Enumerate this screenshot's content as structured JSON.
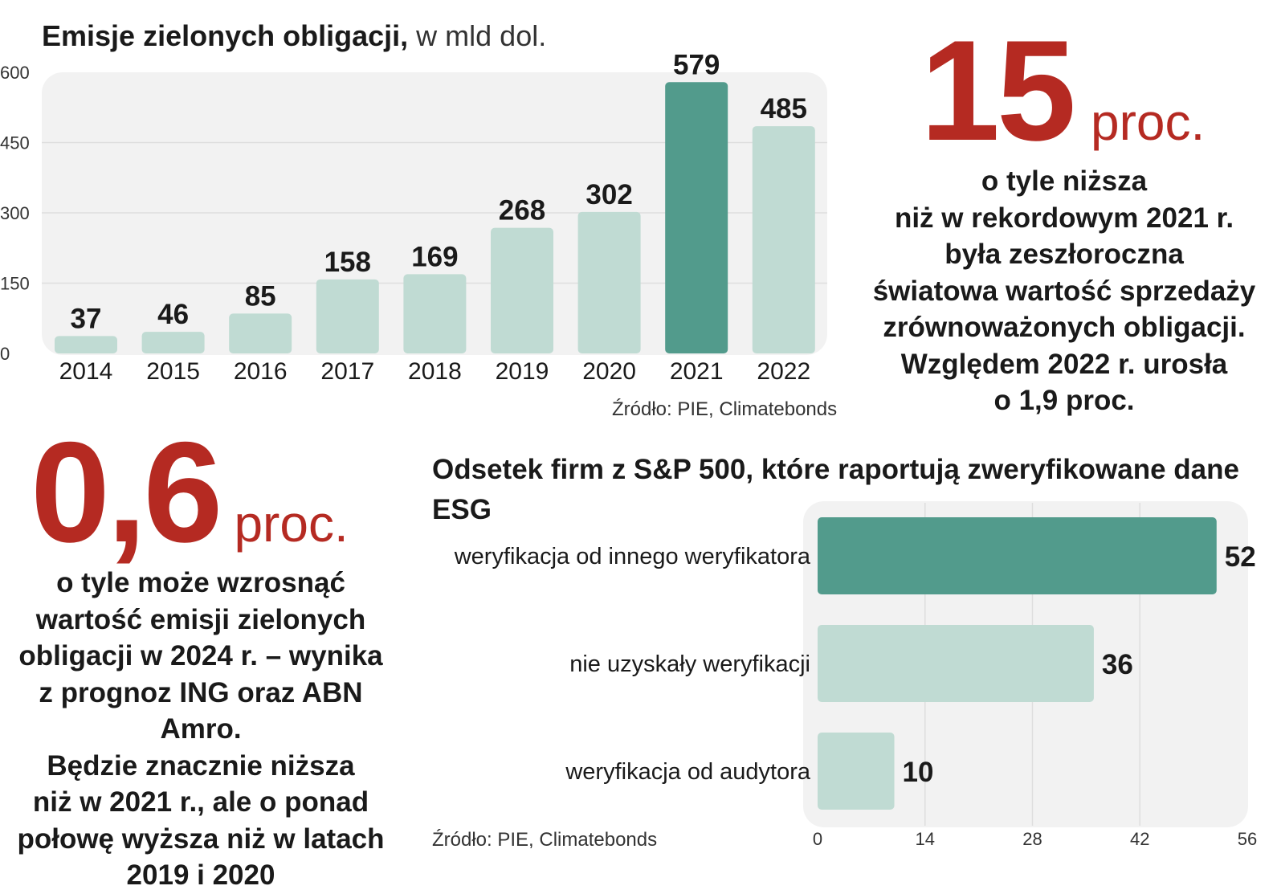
{
  "bar_chart": {
    "title_bold": "Emisje zielonych obligacji,",
    "title_rest": "w mld dol.",
    "source": "Źródło: PIE, Climatebonds",
    "accent": "#529b8c",
    "base": "#c0dbd3",
    "panel": "#f2f2f2"
  },
  "stat_1": {
    "number": "15",
    "unit": "proc.",
    "text": [
      "o tyle niższa",
      "niż w rekordowym 2021 r.",
      "była zeszłoroczna",
      "światowa wartość sprzedaży",
      "zrównoważonych obligacji.",
      "Względem 2022 r. urosła",
      "o 1,9 proc."
    ],
    "color": "#b52a22"
  },
  "stat_2": {
    "number": "0,6",
    "unit": "proc.",
    "text": [
      "o tyle może wzrosnąć",
      "wartość emisji zielonych",
      "obligacji w 2024 r. – wynika",
      "z prognoz ING oraz ABN Amro.",
      "Będzie znacznie niższa",
      "niż w 2021 r., ale o ponad",
      "połowę wyższa niż w latach",
      "2019 i 2020"
    ],
    "color": "#b52a22"
  },
  "hbar_chart": {
    "title": "Odsetek firm z S&P 500, które raportują zweryfikowane dane ESG",
    "source": "Źródło: PIE, Climatebonds"
  },
  "chart_data": [
    {
      "type": "bar",
      "title": "Emisje zielonych obligacji, w mld dol.",
      "categories": [
        "2014",
        "2015",
        "2016",
        "2017",
        "2018",
        "2019",
        "2020",
        "2021",
        "2022"
      ],
      "values": [
        37,
        46,
        85,
        158,
        169,
        268,
        302,
        579,
        485
      ],
      "highlight": "2021",
      "ylim": [
        0,
        600
      ],
      "yticks": [
        0,
        150,
        300,
        450,
        600
      ],
      "grid": true
    },
    {
      "type": "bar",
      "orientation": "horizontal",
      "title": "Odsetek firm z S&P 500, które raportują zweryfikowane dane ESG",
      "categories": [
        "weryfikacja od innego weryfikatora",
        "nie uzyskały weryfikacji",
        "weryfikacja od audytora"
      ],
      "values": [
        52,
        36,
        10
      ],
      "highlight": "weryfikacja od innego weryfikatora",
      "xlim": [
        0,
        56
      ],
      "xticks": [
        0,
        14,
        28,
        42,
        56
      ],
      "grid": true
    }
  ]
}
